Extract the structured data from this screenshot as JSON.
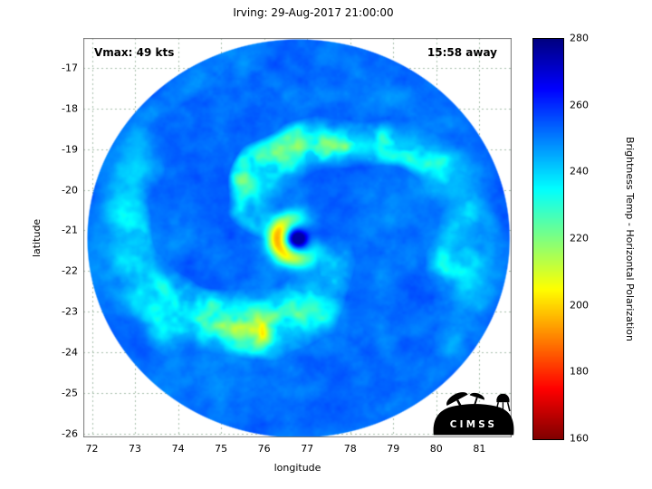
{
  "chart_data": {
    "type": "heatmap",
    "title": "Irving: 29-Aug-2017 21:00:00",
    "annotations": [
      {
        "text": "Vmax: 49 kts",
        "position": "top-left"
      },
      {
        "text": "15:58 away",
        "position": "top-right"
      }
    ],
    "xlabel": "longitude",
    "ylabel": "latitude",
    "x_ticks": [
      72,
      73,
      74,
      75,
      76,
      77,
      78,
      79,
      80,
      81
    ],
    "y_ticks": [
      -17,
      -18,
      -19,
      -20,
      -21,
      -22,
      -23,
      -24,
      -25,
      -26
    ],
    "xlim": [
      71.8,
      81.75
    ],
    "ylim": [
      -26.1,
      -16.26
    ],
    "grid": true,
    "grid_style": "dashed",
    "colorbar": {
      "label": "Brightness Temp - Horizontal Polarization",
      "min": 160,
      "max": 280,
      "ticks": [
        160,
        180,
        200,
        220,
        240,
        260,
        280
      ],
      "colormap": "jet_reversed",
      "position": "right"
    },
    "storm": {
      "name": "Irving",
      "timestamp": "29-Aug-2017 21:00:00",
      "vmax_kts": 49,
      "time_away": "15:58",
      "center_lon": 76.8,
      "center_lat": -21.2,
      "swath_radius_deg": 4.92,
      "background_temp_K": 252,
      "eye_temp_K": 273,
      "eyewall_min_temp_K": 200
    }
  },
  "logo": {
    "text": "CIMSS"
  },
  "colors": {
    "background": "#ffffff",
    "grid": "#6e9673",
    "frame": "#777777",
    "text": "#000000"
  }
}
